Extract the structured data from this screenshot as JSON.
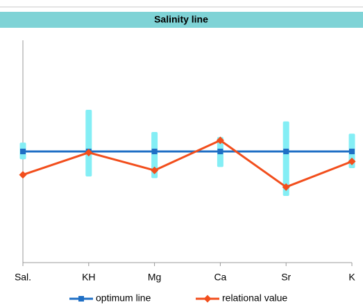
{
  "chart_data": {
    "type": "line",
    "title": "Salinity line",
    "categories": [
      "Sal.",
      "KH",
      "Mg",
      "Ca",
      "Sr",
      "K"
    ],
    "ylim": [
      0,
      2
    ],
    "bands": {
      "color": "#84eef5",
      "low": [
        0.93,
        0.775,
        0.76,
        0.86,
        0.6,
        0.85
      ],
      "high": [
        1.08,
        1.375,
        1.175,
        1.13,
        1.27,
        1.16
      ]
    },
    "series": [
      {
        "name": "optimum line",
        "color": "#1f6fc5",
        "marker": "square",
        "values": [
          1.0,
          1.0,
          1.0,
          1.0,
          1.0,
          1.0
        ]
      },
      {
        "name": "relational value",
        "color": "#f24e1c",
        "marker": "diamond",
        "values": [
          0.79,
          0.99,
          0.83,
          1.1,
          0.68,
          0.91
        ]
      }
    ]
  }
}
